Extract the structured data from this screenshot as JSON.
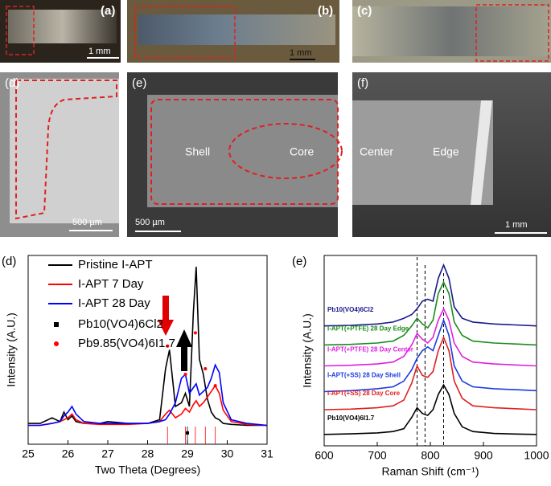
{
  "photos": [
    {
      "label": "(a)",
      "scale": "1 mm"
    },
    {
      "label": "(b)",
      "scale": "1 mm"
    },
    {
      "label": "(c)"
    }
  ],
  "sem": [
    {
      "label": "(d)",
      "scale": "500 µm"
    },
    {
      "label": "(e)",
      "regions": [
        "Shell",
        "Core"
      ],
      "scale": "500 µm"
    },
    {
      "label": "(f)",
      "regions": [
        "Center",
        "Edge"
      ],
      "scale": "1 mm"
    }
  ],
  "chart_data": [
    {
      "type": "line",
      "panel_label": "(d)",
      "xlabel": "Two Theta (Degrees)",
      "ylabel": "Intensity (A.U.)",
      "xlim": [
        25,
        31
      ],
      "ylim": [
        0,
        100
      ],
      "xticks": [
        25,
        26,
        27,
        28,
        29,
        30,
        31
      ],
      "x": [
        25,
        25.3,
        25.6,
        25.8,
        25.9,
        26.0,
        26.1,
        26.2,
        26.4,
        26.8,
        27.0,
        27.5,
        28.0,
        28.3,
        28.45,
        28.55,
        28.7,
        28.85,
        28.95,
        29.05,
        29.15,
        29.22,
        29.3,
        29.4,
        29.5,
        29.6,
        29.7,
        29.8,
        29.9,
        30.1,
        30.5,
        31
      ],
      "series": [
        {
          "name": "Pristine I-APT",
          "color": "#000000",
          "values": [
            11,
            11,
            14,
            12,
            17,
            13,
            15,
            12,
            11,
            11,
            12,
            11,
            11,
            13,
            40,
            50,
            20,
            22,
            27,
            20,
            70,
            94,
            45,
            37,
            24,
            17,
            14,
            13,
            11,
            10.5,
            10,
            10
          ]
        },
        {
          "name": "I-APT 7 Day",
          "color": "#ff0000",
          "values": [
            10,
            10,
            11,
            12,
            13,
            14,
            16,
            13,
            11,
            10.5,
            10.5,
            10.5,
            11,
            12,
            16,
            18,
            14,
            16,
            19,
            17,
            21,
            23,
            20,
            22,
            25,
            28,
            31,
            27,
            18,
            12,
            10.5,
            10
          ]
        },
        {
          "name": "I-APT 28 Day",
          "color": "#0000ff",
          "values": [
            10,
            10,
            11,
            12,
            15,
            17,
            20,
            16,
            12,
            11,
            11,
            11,
            11,
            12,
            13,
            16,
            22,
            35,
            37,
            27,
            30,
            32,
            26,
            28,
            30,
            35,
            42,
            38,
            22,
            13,
            11,
            10
          ]
        }
      ],
      "markers": [
        {
          "name": "Pb10(VO4)6Cl2",
          "color": "#000000",
          "x": [
            29.0
          ],
          "values": [
            6
          ]
        },
        {
          "name": "Pb9.85(VO4)6I1.7",
          "color": "#ff0000",
          "x": [
            28.5,
            28.95,
            29.2,
            29.45,
            29.7
          ],
          "values": [
            52,
            37,
            59,
            40,
            31
          ]
        }
      ]
    },
    {
      "type": "line",
      "panel_label": "(e)",
      "xlabel": "Raman Shift (cm⁻¹)",
      "ylabel": "Intensity (A.U.)",
      "xlim": [
        600,
        1000
      ],
      "ylim": [
        0,
        100
      ],
      "xticks": [
        600,
        700,
        800,
        900,
        1000
      ],
      "ref_lines": [
        775,
        790,
        825
      ],
      "x": [
        600,
        650,
        700,
        730,
        750,
        765,
        775,
        785,
        795,
        805,
        815,
        825,
        835,
        845,
        860,
        880,
        920,
        960,
        1000
      ],
      "series": [
        {
          "name": "Pb10(VO4)6Cl2",
          "color": "#1a1a8c",
          "values": [
            63,
            63.3,
            64,
            65,
            67,
            69,
            72,
            76,
            77,
            76,
            88,
            95,
            88,
            73,
            67,
            65,
            64,
            63.5,
            63
          ]
        },
        {
          "name": "I-APT(+PTFE)  28 Day Edge",
          "color": "#1a8c1a",
          "values": [
            53,
            53.3,
            54,
            55,
            58,
            63,
            67,
            64,
            62,
            66,
            80,
            86,
            80,
            65,
            58,
            55,
            54,
            53.5,
            53
          ]
        },
        {
          "name": "I-APT(+PTFE)  28 Day Center",
          "color": "#e020e0",
          "values": [
            42,
            42.3,
            43,
            44,
            47,
            53,
            59,
            56,
            54,
            57,
            66,
            72,
            66,
            54,
            47,
            44,
            43,
            42.5,
            42
          ]
        },
        {
          "name": "I-APT(+SS)  28 Day Shell",
          "color": "#1a3ce0",
          "values": [
            28.5,
            29,
            30,
            31,
            34,
            40,
            46,
            50,
            52,
            50,
            58,
            66,
            58,
            42,
            34,
            31,
            30,
            29.5,
            29
          ]
        },
        {
          "name": "I-APT(+SS)  28 Day Core",
          "color": "#e02020",
          "values": [
            19,
            19.3,
            20,
            21,
            24,
            33,
            42,
            37,
            36,
            39,
            50,
            57,
            50,
            34,
            25,
            21,
            20,
            19.5,
            19
          ]
        },
        {
          "name": "Pb10(VO4)6I1.7",
          "color": "#000000",
          "values": [
            6,
            6.3,
            6.8,
            7.5,
            9,
            15,
            20,
            17,
            16,
            19,
            27,
            32,
            27,
            17,
            10,
            7.5,
            6.5,
            6.2,
            6
          ]
        }
      ]
    }
  ]
}
